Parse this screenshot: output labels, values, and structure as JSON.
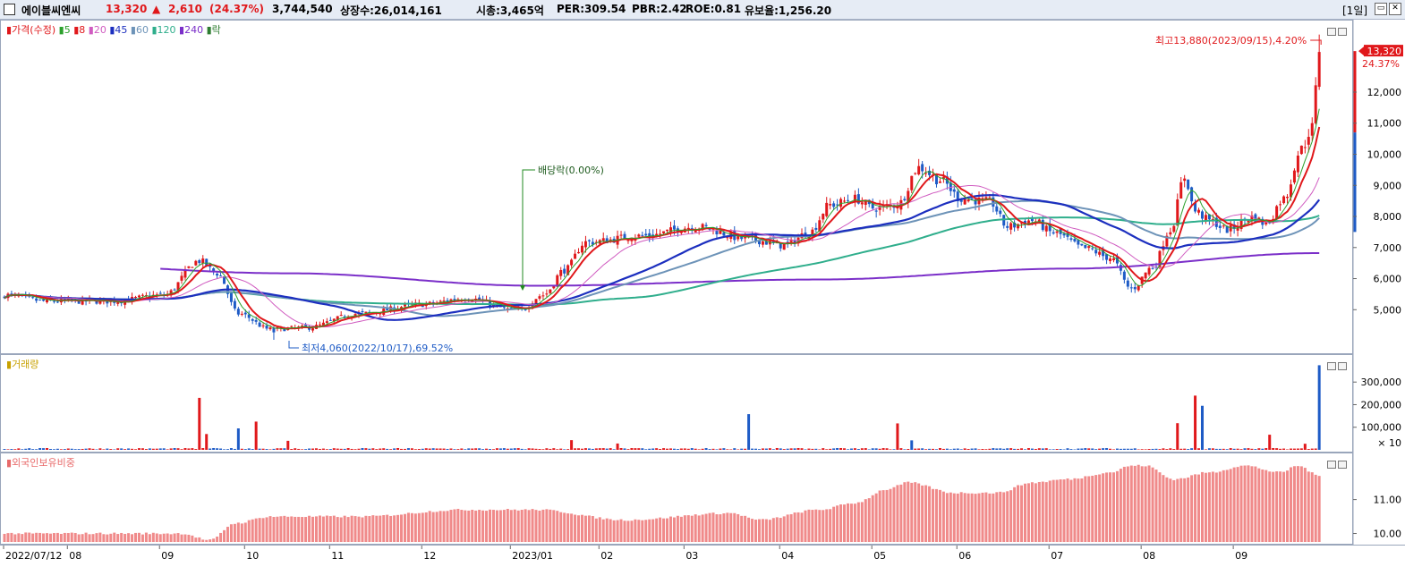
{
  "header": {
    "stock_name": "에이블씨엔씨",
    "price": "13,320",
    "change_arrow": "▲",
    "change": "2,610",
    "change_pct": "(24.37%)",
    "volume": "3,744,540",
    "listed_shares": "상장수:26,014,161",
    "market_cap": "시총:3,465억",
    "per": "PER:309.54",
    "pbr": "PBR:2.42",
    "roe": "ROE:0.81",
    "float_ratio": "유보율:1,256.20",
    "period": "[1일]",
    "colors": {
      "up": "#e0181b",
      "down": "#1e5bc6"
    }
  },
  "price_panel": {
    "legend": [
      {
        "text": "가격(수정)",
        "color": "#e0181b"
      },
      {
        "text": "5",
        "color": "#2ca02c"
      },
      {
        "text": "8",
        "color": "#e0181b"
      },
      {
        "text": "20",
        "color": "#d05bc0"
      },
      {
        "text": "45",
        "color": "#1c2fbf"
      },
      {
        "text": "60",
        "color": "#6d93b8"
      },
      {
        "text": "120",
        "color": "#2fae8c"
      },
      {
        "text": "240",
        "color": "#7b2fc9"
      },
      {
        "text": "락",
        "color": "#2e7d32"
      }
    ],
    "annotations": {
      "high": "최고13,880(2023/09/15),4.20%",
      "low": "최저4,060(2022/10/17),69.52%",
      "dividend": "배당락(0.00%)"
    },
    "current_price_label": "13,320",
    "current_pct_label": "24.37%",
    "y_ticks": [
      "12,000",
      "11,000",
      "10,000",
      "9,000",
      "8,000",
      "7,000",
      "6,000",
      "5,000"
    ]
  },
  "volume_panel": {
    "label": "거래량",
    "y_ticks": [
      "300,000",
      "200,000",
      "100,000"
    ],
    "multiplier": "× 10"
  },
  "foreign_panel": {
    "label": "외국인보유비중",
    "y_ticks": [
      "11.00",
      "10.00"
    ]
  },
  "x_axis": {
    "labels": [
      "2022/07/12",
      "08",
      "09",
      "10",
      "11",
      "12",
      "2023/01",
      "02",
      "03",
      "04",
      "05",
      "06",
      "07",
      "08",
      "09"
    ]
  },
  "chart_data": {
    "type": "candlestick",
    "price_range": [
      3800,
      14100
    ],
    "volume_range": [
      0,
      380000
    ],
    "foreign_range": [
      9.75,
      12.15
    ],
    "high": 13880,
    "low": 4060,
    "last": 13320,
    "anchors": [
      [
        0,
        5500
      ],
      [
        12,
        5300
      ],
      [
        30,
        5300
      ],
      [
        45,
        5500
      ],
      [
        55,
        6600
      ],
      [
        60,
        6200
      ],
      [
        66,
        4900
      ],
      [
        75,
        4400
      ],
      [
        85,
        4450
      ],
      [
        100,
        4900
      ],
      [
        118,
        5200
      ],
      [
        130,
        5400
      ],
      [
        145,
        5000
      ],
      [
        152,
        5500
      ],
      [
        158,
        6300
      ],
      [
        164,
        7200
      ],
      [
        180,
        7400
      ],
      [
        195,
        7700
      ],
      [
        210,
        7300
      ],
      [
        220,
        7100
      ],
      [
        227,
        7500
      ],
      [
        233,
        8400
      ],
      [
        240,
        8600
      ],
      [
        245,
        8300
      ],
      [
        252,
        8400
      ],
      [
        258,
        9600
      ],
      [
        264,
        9200
      ],
      [
        270,
        8600
      ],
      [
        278,
        8500
      ],
      [
        283,
        7700
      ],
      [
        290,
        7900
      ],
      [
        296,
        7500
      ],
      [
        305,
        7000
      ],
      [
        312,
        6700
      ],
      [
        318,
        5700
      ],
      [
        324,
        6400
      ],
      [
        329,
        7600
      ],
      [
        333,
        9300
      ],
      [
        336,
        8200
      ],
      [
        340,
        7900
      ],
      [
        345,
        7600
      ],
      [
        352,
        8000
      ],
      [
        356,
        7800
      ],
      [
        361,
        8600
      ],
      [
        366,
        10200
      ],
      [
        369,
        10900
      ],
      [
        371,
        13320
      ]
    ],
    "volume_spikes": [
      [
        55,
        2300000,
        1
      ],
      [
        57,
        700000,
        1
      ],
      [
        66,
        950000,
        0
      ],
      [
        71,
        1250000,
        1
      ],
      [
        80,
        400000,
        1
      ],
      [
        160,
        430000,
        1
      ],
      [
        173,
        280000,
        1
      ],
      [
        210,
        1580000,
        0
      ],
      [
        252,
        1170000,
        1
      ],
      [
        256,
        420000,
        0
      ],
      [
        331,
        1180000,
        1
      ],
      [
        336,
        2400000,
        1
      ],
      [
        338,
        1950000,
        0
      ],
      [
        357,
        670000,
        1
      ],
      [
        367,
        270000,
        1
      ],
      [
        371,
        3744540,
        0
      ]
    ],
    "foreign_anchors": [
      [
        0,
        10.0
      ],
      [
        50,
        10.0
      ],
      [
        58,
        9.8
      ],
      [
        65,
        10.3
      ],
      [
        75,
        10.5
      ],
      [
        100,
        10.5
      ],
      [
        130,
        10.7
      ],
      [
        150,
        10.7
      ],
      [
        175,
        10.4
      ],
      [
        205,
        10.6
      ],
      [
        213,
        10.4
      ],
      [
        230,
        10.7
      ],
      [
        240,
        10.9
      ],
      [
        249,
        11.3
      ],
      [
        255,
        11.5
      ],
      [
        268,
        11.2
      ],
      [
        280,
        11.2
      ],
      [
        290,
        11.5
      ],
      [
        300,
        11.6
      ],
      [
        312,
        11.8
      ],
      [
        318,
        12.0
      ],
      [
        322,
        12.0
      ],
      [
        330,
        11.6
      ],
      [
        340,
        11.8
      ],
      [
        350,
        12.0
      ],
      [
        360,
        11.8
      ],
      [
        365,
        12.0
      ],
      [
        371,
        11.7
      ]
    ]
  }
}
